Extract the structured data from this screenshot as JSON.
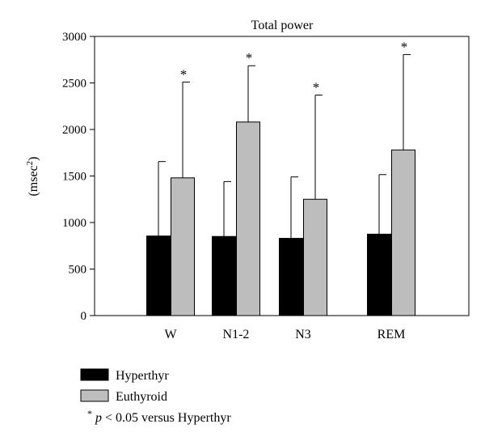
{
  "chart_data": {
    "type": "bar",
    "title": "Total power",
    "ylabel": "(msec",
    "ylabel_superscript": "2",
    "ylabel_close": ")",
    "ylim": [
      0,
      3000
    ],
    "yticks": [
      0,
      500,
      1000,
      1500,
      2000,
      2500,
      3000
    ],
    "categories": [
      "W",
      "N1-2",
      "N3",
      "REM"
    ],
    "series": [
      {
        "name": "Hyperthyr",
        "color": "#000000",
        "values": [
          855,
          850,
          830,
          875
        ],
        "error_upper": [
          1655,
          1440,
          1490,
          1515
        ]
      },
      {
        "name": "Euthyroid",
        "color": "#bdbdbd",
        "values": [
          1480,
          2080,
          1250,
          1780
        ],
        "error_upper": [
          2510,
          2685,
          2370,
          2805
        ]
      }
    ],
    "annotations": [
      "*",
      "*",
      "*",
      "*"
    ],
    "significance_note": {
      "marker": "*",
      "p": "p",
      "text": " < 0.05 versus Hyperthyr"
    },
    "legend_placement": "bottom-left",
    "grid": false
  }
}
